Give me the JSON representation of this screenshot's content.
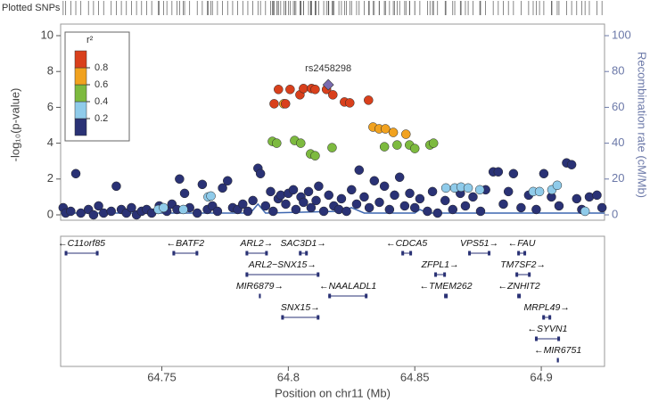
{
  "chart_data": {
    "type": "scatter",
    "rug_label": "Plotted SNPs",
    "ylabel": "-log₁₀(p-value)",
    "y2label": "Recombination rate (cM/Mb)",
    "xlabel": "Position on chr11 (Mb)",
    "xlim": [
      64.71,
      64.925
    ],
    "xticks": [
      64.75,
      64.8,
      64.85,
      64.9
    ],
    "ylim": [
      0,
      10
    ],
    "yticks": [
      0,
      2,
      4,
      6,
      8,
      10
    ],
    "y2lim": [
      0,
      100
    ],
    "y2ticks": [
      0,
      20,
      40,
      60,
      80,
      100
    ],
    "legend": {
      "title": "r²",
      "ticks": [
        0.2,
        0.4,
        0.6,
        0.8
      ]
    },
    "annotation": {
      "text": "rs2458298",
      "series": 5,
      "index": 0
    },
    "series": [
      {
        "color": "#2a3275",
        "x": [
          64.711,
          64.712,
          64.714,
          64.716,
          64.718,
          64.721,
          64.723,
          64.725,
          64.727,
          64.73,
          64.732,
          64.734,
          64.736,
          64.738,
          64.74,
          64.742,
          64.744,
          64.746,
          64.749,
          64.752,
          64.754,
          64.756,
          64.757,
          64.759,
          64.761,
          64.764,
          64.766,
          64.768,
          64.77,
          64.772,
          64.774,
          64.776,
          64.778,
          64.78,
          64.782,
          64.784,
          64.786,
          64.788,
          64.789,
          64.791,
          64.793,
          64.794,
          64.796,
          64.797,
          64.799,
          64.8,
          64.802,
          64.803,
          64.805,
          64.806,
          64.808,
          64.809,
          64.811,
          64.812,
          64.814,
          64.816,
          64.818,
          64.82,
          64.821,
          64.823,
          64.825,
          64.827,
          64.828,
          64.83,
          64.832,
          64.834,
          64.836,
          64.838,
          64.84,
          64.842,
          64.844,
          64.846,
          64.848,
          64.85,
          64.852,
          64.855,
          64.857,
          64.859,
          64.862,
          64.865,
          64.868,
          64.87,
          64.873,
          64.876,
          64.878,
          64.881,
          64.883,
          64.885,
          64.887,
          64.889,
          64.892,
          64.895,
          64.898,
          64.901,
          64.904,
          64.907,
          64.91,
          64.912,
          64.914,
          64.916,
          64.919,
          64.922,
          64.924
        ],
        "values": [
          0.4,
          0.1,
          0.2,
          2.3,
          0.1,
          0.3,
          0.0,
          0.5,
          0.1,
          0.2,
          1.6,
          0.3,
          0.1,
          0.4,
          0.0,
          0.2,
          0.3,
          0.1,
          0.5,
          0.2,
          0.6,
          0.3,
          2.0,
          1.2,
          0.4,
          0.1,
          1.7,
          0.3,
          0.5,
          0.2,
          1.5,
          1.9,
          0.4,
          0.3,
          0.6,
          0.2,
          0.8,
          2.6,
          2.3,
          0.5,
          1.3,
          0.2,
          0.9,
          1.1,
          0.6,
          1.2,
          1.4,
          0.3,
          1.0,
          0.7,
          1.3,
          0.4,
          0.8,
          1.6,
          0.2,
          1.1,
          0.5,
          0.3,
          0.9,
          0.2,
          1.4,
          0.6,
          2.5,
          1.0,
          0.4,
          1.9,
          0.7,
          1.6,
          0.3,
          1.1,
          2.1,
          0.5,
          1.2,
          0.4,
          0.9,
          0.2,
          1.3,
          0.1,
          0.8,
          0.3,
          1.2,
          0.5,
          1.0,
          0.2,
          1.4,
          2.4,
          2.4,
          0.6,
          1.3,
          2.3,
          0.4,
          1.1,
          0.3,
          2.3,
          1.0,
          0.5,
          2.9,
          2.8,
          0.9,
          0.3,
          1.0,
          1.1,
          0.4
        ]
      },
      {
        "color": "#8fcbea",
        "x": [
          64.7486,
          64.7507,
          64.7585,
          64.7683,
          64.7694,
          64.8623,
          64.8658,
          64.8683,
          64.8711,
          64.8757,
          64.8968,
          64.8993,
          64.9042,
          64.9063,
          64.9173
        ],
        "values": [
          0.3,
          0.4,
          0.3,
          1.0,
          1.05,
          1.5,
          1.5,
          1.55,
          1.5,
          1.4,
          1.3,
          1.3,
          1.4,
          1.65,
          0.2
        ]
      },
      {
        "color": "#7dba3f",
        "x": [
          64.7937,
          64.7954,
          64.8025,
          64.8049,
          64.8088,
          64.8106,
          64.8173,
          64.838,
          64.843,
          64.8479,
          64.85,
          64.856,
          64.8574
        ],
        "values": [
          4.1,
          4.0,
          4.15,
          4.0,
          3.4,
          3.3,
          3.75,
          3.8,
          3.9,
          3.9,
          3.7,
          3.9,
          4.0
        ]
      },
      {
        "color": "#f1a21f",
        "x": [
          64.7982,
          64.8335,
          64.8359,
          64.8384,
          64.8415,
          64.8465
        ],
        "values": [
          6.2,
          4.9,
          4.8,
          4.8,
          4.6,
          4.5
        ]
      },
      {
        "color": "#d9401c",
        "x": [
          64.7944,
          64.7961,
          64.7989,
          64.8007,
          64.8046,
          64.806,
          64.8092,
          64.8106,
          64.8151,
          64.8176,
          64.8222,
          64.8243,
          64.8317
        ],
        "values": [
          6.2,
          7.0,
          6.2,
          7.0,
          6.7,
          7.05,
          7.05,
          7.0,
          7.0,
          6.7,
          6.3,
          6.25,
          6.4
        ]
      },
      {
        "color": "#7a6bb0",
        "marker": "diamond",
        "x": [
          64.8158
        ],
        "values": [
          7.26
        ]
      }
    ],
    "recombination": {
      "color": "#3d66b0",
      "x": [
        64.71,
        64.785,
        64.788,
        64.791,
        64.82,
        64.825,
        64.83,
        64.85,
        64.852,
        64.855,
        64.88,
        64.925
      ],
      "values": [
        1,
        1,
        6,
        1,
        2,
        4,
        1,
        1,
        3,
        1,
        1,
        1
      ]
    },
    "genes": [
      {
        "label": "←C11orf85",
        "start": 64.7116,
        "end": 64.725,
        "row": 0
      },
      {
        "label": "←BATF2",
        "start": 64.7542,
        "end": 64.7644,
        "row": 0
      },
      {
        "label": "ARL2→",
        "start": 64.7831,
        "end": 64.7919,
        "row": 0
      },
      {
        "label": "SAC3D1→",
        "start": 64.8042,
        "end": 64.8077,
        "row": 0
      },
      {
        "label": "←CDCA5",
        "start": 64.8447,
        "end": 64.8489,
        "row": 0
      },
      {
        "label": "VPS51→",
        "start": 64.8711,
        "end": 64.8799,
        "row": 0
      },
      {
        "label": "←FAU",
        "start": 64.8905,
        "end": 64.894,
        "row": 0
      },
      {
        "label": "ARL2−SNX15→",
        "start": 64.7831,
        "end": 64.8123,
        "row": 1
      },
      {
        "label": "ZFPL1→",
        "start": 64.8577,
        "end": 64.8623,
        "row": 1
      },
      {
        "label": "TM7SF2→",
        "start": 64.8898,
        "end": 64.8958,
        "row": 1
      },
      {
        "label": "MIR6879→",
        "start": 64.7884,
        "end": 64.7886,
        "row": 2
      },
      {
        "label": "←NAALADL1",
        "start": 64.8158,
        "end": 64.8313,
        "row": 2
      },
      {
        "label": "←TMEM262",
        "start": 64.8616,
        "end": 64.863,
        "row": 2
      },
      {
        "label": "←ZNHIT2",
        "start": 64.8905,
        "end": 64.8919,
        "row": 2
      },
      {
        "label": "SNX15→",
        "start": 64.7972,
        "end": 64.8123,
        "row": 3
      },
      {
        "label": "MRPL49→",
        "start": 64.9004,
        "end": 64.9039,
        "row": 3
      },
      {
        "label": "←SYVN1",
        "start": 64.8975,
        "end": 64.9074,
        "row": 4
      },
      {
        "label": "←MIR6751",
        "start": 64.9062,
        "end": 64.9064,
        "row": 5
      }
    ]
  }
}
